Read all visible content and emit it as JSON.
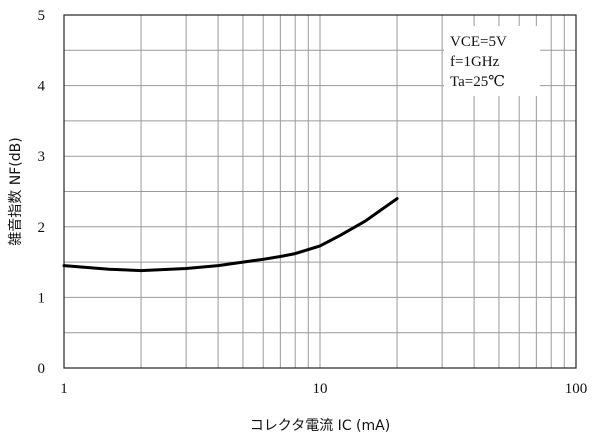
{
  "chart_data": {
    "type": "line",
    "xscale": "log",
    "xlim": [
      1,
      100
    ],
    "ylim": [
      0,
      5
    ],
    "x_ticks": [
      1,
      10,
      100
    ],
    "x_tick_labels": [
      "1",
      "10",
      "100"
    ],
    "y_ticks": [
      0,
      1,
      2,
      3,
      4,
      5
    ],
    "y_tick_labels": [
      "0",
      "1",
      "2",
      "3",
      "4",
      "5"
    ],
    "xlabel": "コレクタ電流 IC (mA)",
    "ylabel": "雑音指数 NF(dB)",
    "grid": true,
    "conditions": [
      "VCE=5V",
      "f=1GHz",
      "Ta=25℃"
    ],
    "series": [
      {
        "x": [
          1,
          1.5,
          2,
          3,
          4,
          5,
          6,
          7,
          8,
          10,
          12,
          15,
          20
        ],
        "y": [
          1.45,
          1.4,
          1.38,
          1.41,
          1.45,
          1.5,
          1.54,
          1.58,
          1.62,
          1.73,
          1.88,
          2.08,
          2.4
        ]
      }
    ]
  }
}
